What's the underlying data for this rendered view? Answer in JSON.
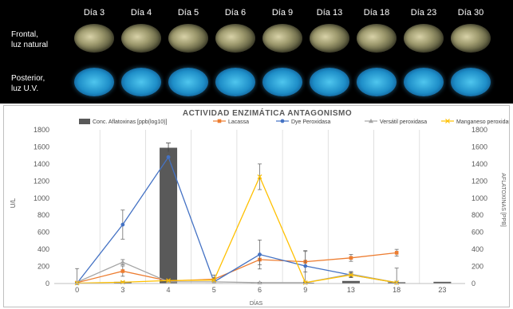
{
  "photo_panel": {
    "day_labels": [
      "Día 3",
      "Día 4",
      "Día 5",
      "Día 6",
      "Día 9",
      "Día 13",
      "Día 18",
      "Día 23",
      "Día 30"
    ],
    "row_front": "Frontal,\nluz natural",
    "row_uv": "Posterior,\nluz U.V."
  },
  "chart_data": {
    "type": "bar+line",
    "title": "ACTIVIDAD ENZIMÁTICA ANTAGONISMO",
    "xlabel": "DÍAS",
    "ylabel_left": "U/L",
    "ylabel_right": "AFLATOXINAS [PPB]",
    "categories": [
      "0",
      "3",
      "4",
      "5",
      "6",
      "9",
      "13",
      "18",
      "23"
    ],
    "ylim_left": [
      0,
      1800
    ],
    "ylim_right": [
      0,
      1800
    ],
    "yticks": [
      0,
      200,
      400,
      600,
      800,
      1000,
      1200,
      1400,
      1600,
      1800
    ],
    "grid": "vertical",
    "legend_position": "top",
    "bar_series": {
      "name": "Conc. Aflatoxinas [ppb(log10)]",
      "color": "#595959",
      "axis": "right",
      "values": [
        0,
        20,
        1590,
        5,
        10,
        10,
        30,
        15,
        20
      ],
      "errors": [
        0,
        0,
        55,
        0,
        0,
        0,
        0,
        0,
        0
      ]
    },
    "line_series": [
      {
        "name": "Lacassa",
        "color": "#ED7D31",
        "marker": "square",
        "values": [
          10,
          145,
          30,
          50,
          280,
          255,
          300,
          360,
          null
        ],
        "errors": [
          5,
          60,
          10,
          20,
          60,
          120,
          40,
          40,
          null
        ]
      },
      {
        "name": "Dye Peroxidasa",
        "color": "#4472C4",
        "marker": "circle",
        "values": [
          5,
          690,
          1480,
          20,
          340,
          205,
          100,
          10,
          null
        ],
        "errors": [
          170,
          170,
          60,
          80,
          170,
          180,
          30,
          170,
          null
        ]
      },
      {
        "name": "Versátil peroxidasa",
        "color": "#A5A5A5",
        "marker": "triangle",
        "values": [
          15,
          250,
          20,
          20,
          10,
          10,
          110,
          10,
          null
        ],
        "errors": [
          5,
          30,
          5,
          5,
          5,
          5,
          30,
          5,
          null
        ]
      },
      {
        "name": "Manganeso peroxidasa",
        "color": "#FFC000",
        "marker": "x",
        "values": [
          5,
          15,
          35,
          40,
          1250,
          10,
          100,
          10,
          null
        ],
        "errors": [
          5,
          10,
          10,
          10,
          150,
          5,
          30,
          5,
          null
        ]
      }
    ]
  }
}
